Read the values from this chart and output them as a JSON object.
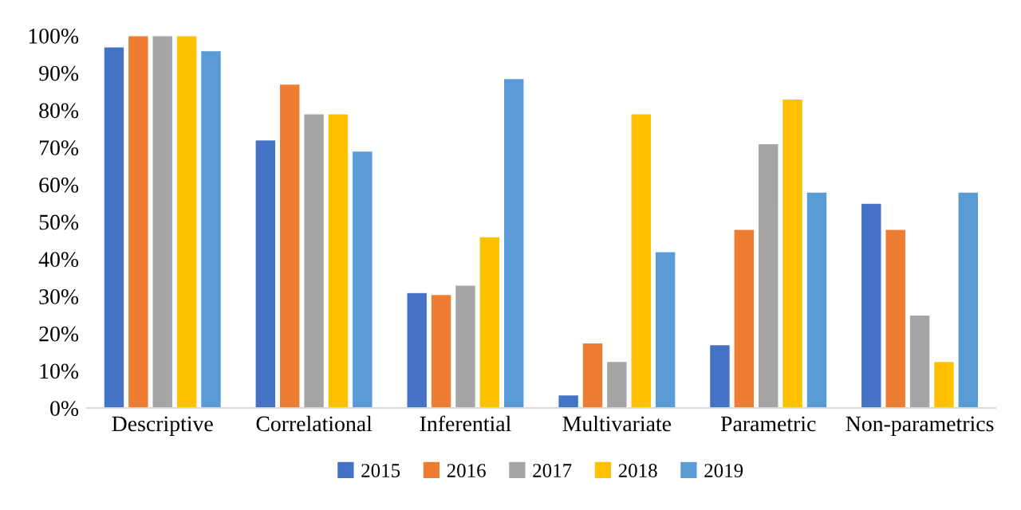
{
  "chart_data": {
    "type": "bar",
    "categories": [
      "Descriptive",
      "Correlational",
      "Inferential",
      "Multivariate",
      "Parametric",
      "Non-parametrics"
    ],
    "series": [
      {
        "name": "2015",
        "color": "#4472c4",
        "values": [
          97,
          72,
          31,
          3.5,
          17,
          55
        ]
      },
      {
        "name": "2016",
        "color": "#ed7d31",
        "values": [
          100,
          87,
          30.5,
          17.5,
          48,
          48
        ]
      },
      {
        "name": "2017",
        "color": "#a5a5a5",
        "values": [
          100,
          79,
          33,
          12.5,
          71,
          25
        ]
      },
      {
        "name": "2018",
        "color": "#ffc000",
        "values": [
          100,
          79,
          46,
          79,
          83,
          12.5
        ]
      },
      {
        "name": "2019",
        "color": "#5b9bd5",
        "values": [
          96,
          69,
          88.5,
          42,
          58,
          58
        ]
      }
    ],
    "ylim": [
      0,
      100
    ],
    "yticks": [
      {
        "value": 0,
        "label": "0%"
      },
      {
        "value": 10,
        "label": "10%"
      },
      {
        "value": 20,
        "label": "20%"
      },
      {
        "value": 30,
        "label": "30%"
      },
      {
        "value": 40,
        "label": "40%"
      },
      {
        "value": 50,
        "label": "50%"
      },
      {
        "value": 60,
        "label": "60%"
      },
      {
        "value": 70,
        "label": "70%"
      },
      {
        "value": 80,
        "label": "80%"
      },
      {
        "value": 90,
        "label": "90%"
      },
      {
        "value": 100,
        "label": "100%"
      }
    ],
    "grid": false,
    "legend": "bottom"
  }
}
